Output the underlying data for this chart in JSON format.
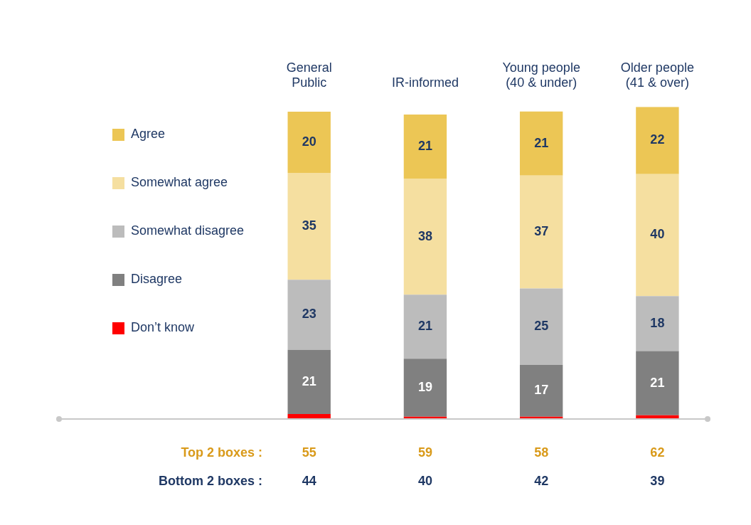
{
  "chart_data": {
    "type": "bar",
    "stacked": true,
    "legend": "left",
    "categories": [
      "General Public",
      "IR-informed",
      "Young people (40 & under)",
      "Older people (41 & over)"
    ],
    "series": [
      {
        "name": "Don’t know",
        "color": "#ff0000",
        "values": [
          1.4,
          0.5,
          0.5,
          1
        ],
        "value_labels": [
          null,
          null,
          null,
          null
        ]
      },
      {
        "name": "Disagree",
        "color": "#808080",
        "values": [
          21,
          19,
          17,
          21
        ],
        "value_labels": [
          "21",
          "19",
          "17",
          "21"
        ]
      },
      {
        "name": "Somewhat disagree",
        "color": "#bcbcbc",
        "values": [
          23,
          21,
          25,
          18
        ],
        "value_labels": [
          "23",
          "21",
          "25",
          "18"
        ]
      },
      {
        "name": "Somewhat agree",
        "color": "#f5dfa0",
        "values": [
          35,
          38,
          37,
          40
        ],
        "value_labels": [
          "35",
          "38",
          "37",
          "40"
        ]
      },
      {
        "name": "Agree",
        "color": "#ecc655",
        "values": [
          20,
          21,
          21,
          22
        ],
        "value_labels": [
          "20",
          "21",
          "21",
          "22"
        ]
      }
    ],
    "annotations": [
      "Top 2 boxes :",
      "55",
      "59",
      "58",
      "62",
      "Bottom 2 boxes :",
      "44",
      "40",
      "42",
      "39"
    ]
  }
}
